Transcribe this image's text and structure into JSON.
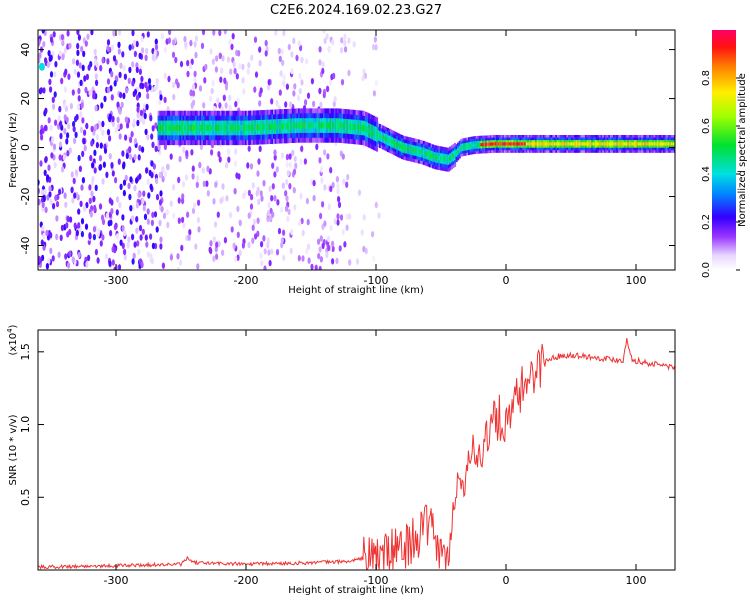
{
  "title": "C2E6.2024.169.02.23.G27",
  "chart_data": [
    {
      "type": "heatmap",
      "xlabel": "Height of straight line (km)",
      "ylabel": "Frequency (Hz)",
      "xlim": [
        -360,
        130
      ],
      "ylim": [
        -50,
        48
      ],
      "x_ticks": [
        -300,
        -200,
        -100,
        0,
        100
      ],
      "x_tick_labels": [
        "-300",
        "-200",
        "-100",
        "0",
        "100"
      ],
      "y_ticks": [
        -40,
        -20,
        0,
        20,
        40
      ],
      "y_tick_labels": [
        "-40",
        "-20",
        "0",
        "20",
        "40"
      ],
      "grid": false,
      "colorbar": {
        "label": "Normalized spectral amplitude",
        "range": [
          0,
          1
        ],
        "ticks": [
          0.0,
          0.2,
          0.4,
          0.6,
          0.8
        ],
        "tick_labels": [
          "0.0",
          "0.2",
          "0.4",
          "0.6",
          "0.8"
        ],
        "colormap": "rainbow"
      },
      "ridge": {
        "x": [
          -265,
          -240,
          -200,
          -160,
          -130,
          -110,
          -95,
          -80,
          -65,
          -55,
          -45,
          -40,
          -35,
          -25,
          -10,
          0,
          30,
          60,
          90,
          130
        ],
        "y": [
          8,
          8,
          8,
          9,
          9,
          8,
          4,
          0,
          -2,
          -4,
          -5,
          -3,
          0,
          1,
          1.5,
          1.5,
          1.5,
          1.5,
          1.5,
          1.5
        ]
      },
      "marker": {
        "x": -357,
        "y": 33
      }
    },
    {
      "type": "line",
      "xlabel": "Height of straight line (km)",
      "ylabel": "SNR (10 * v/v)",
      "y_multiplier": "(x10",
      "y_multiplier_exp": "4",
      "y_multiplier_close": ")",
      "xlim": [
        -360,
        130
      ],
      "ylim": [
        0,
        1.65
      ],
      "x_ticks": [
        -300,
        -200,
        -100,
        0,
        100
      ],
      "x_tick_labels": [
        "-300",
        "-200",
        "-100",
        "0",
        "100"
      ],
      "y_ticks": [
        0.5,
        1.0,
        1.5
      ],
      "y_tick_labels": [
        "0.5",
        "1.0",
        "1.5"
      ],
      "grid": false,
      "series": [
        {
          "color": "#ee3333",
          "x": [
            -360,
            -300,
            -250,
            -245,
            -240,
            -200,
            -150,
            -120,
            -100,
            -90,
            -80,
            -70,
            -60,
            -55,
            -50,
            -45,
            -40,
            -35,
            -30,
            -25,
            -20,
            -15,
            -10,
            -5,
            0,
            5,
            10,
            15,
            20,
            25,
            30,
            40,
            50,
            60,
            70,
            80,
            90,
            93,
            95,
            97,
            100,
            110,
            120,
            130
          ],
          "y": [
            0.02,
            0.03,
            0.04,
            0.08,
            0.05,
            0.04,
            0.05,
            0.06,
            0.1,
            0.12,
            0.15,
            0.22,
            0.3,
            0.25,
            0.1,
            0.05,
            0.4,
            0.7,
            0.6,
            0.9,
            0.75,
            0.95,
            1.0,
            1.05,
            0.95,
            1.1,
            1.2,
            1.3,
            1.35,
            1.4,
            1.44,
            1.47,
            1.48,
            1.47,
            1.46,
            1.45,
            1.44,
            1.6,
            1.5,
            1.45,
            1.44,
            1.42,
            1.41,
            1.39
          ]
        }
      ]
    }
  ]
}
